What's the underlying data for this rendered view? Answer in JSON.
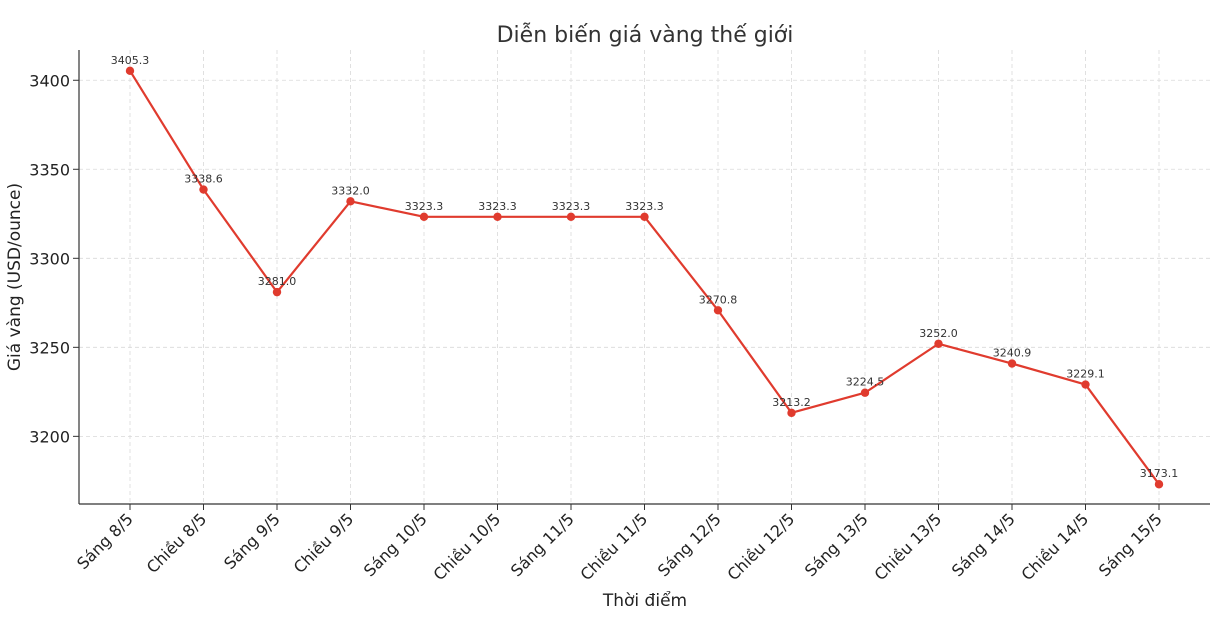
{
  "chart_data": {
    "type": "line",
    "title": "Diễn biến giá vàng thế giới",
    "xlabel": "Thời điểm",
    "ylabel": "Giá vàng (USD/ounce)",
    "categories": [
      "Sáng 8/5",
      "Chiều 8/5",
      "Sáng 9/5",
      "Chiều 9/5",
      "Sáng 10/5",
      "Chiều 10/5",
      "Sáng 11/5",
      "Chiều 11/5",
      "Sáng 12/5",
      "Chiều 12/5",
      "Sáng 13/5",
      "Chiều 13/5",
      "Sáng 14/5",
      "Chiều 14/5",
      "Sáng 15/5"
    ],
    "series": [
      {
        "values": [
          3405.3,
          3338.6,
          3281.0,
          3332.0,
          3323.3,
          3323.3,
          3323.3,
          3323.3,
          3270.8,
          3213.2,
          3224.5,
          3252.0,
          3240.9,
          3229.1,
          3173.1
        ],
        "data_labels": [
          "3405.3",
          "3338.6",
          "3281.0",
          "3332.0",
          "3323.3",
          "3323.3",
          "3323.3",
          "3323.3",
          "3270.8",
          "3213.2",
          "3224.5",
          "3252.0",
          "3240.9",
          "3229.1",
          "3173.1"
        ]
      }
    ],
    "ylim": [
      3162,
      3417
    ],
    "yticks": [
      3200,
      3250,
      3300,
      3350,
      3400
    ],
    "ytick_labels": [
      "3200",
      "3250",
      "3300",
      "3350",
      "3400"
    ],
    "grid": true,
    "legend": "none",
    "colors": {
      "line": "#e03b2e",
      "grid": "#d9d9d9",
      "axis": "#333333"
    }
  }
}
